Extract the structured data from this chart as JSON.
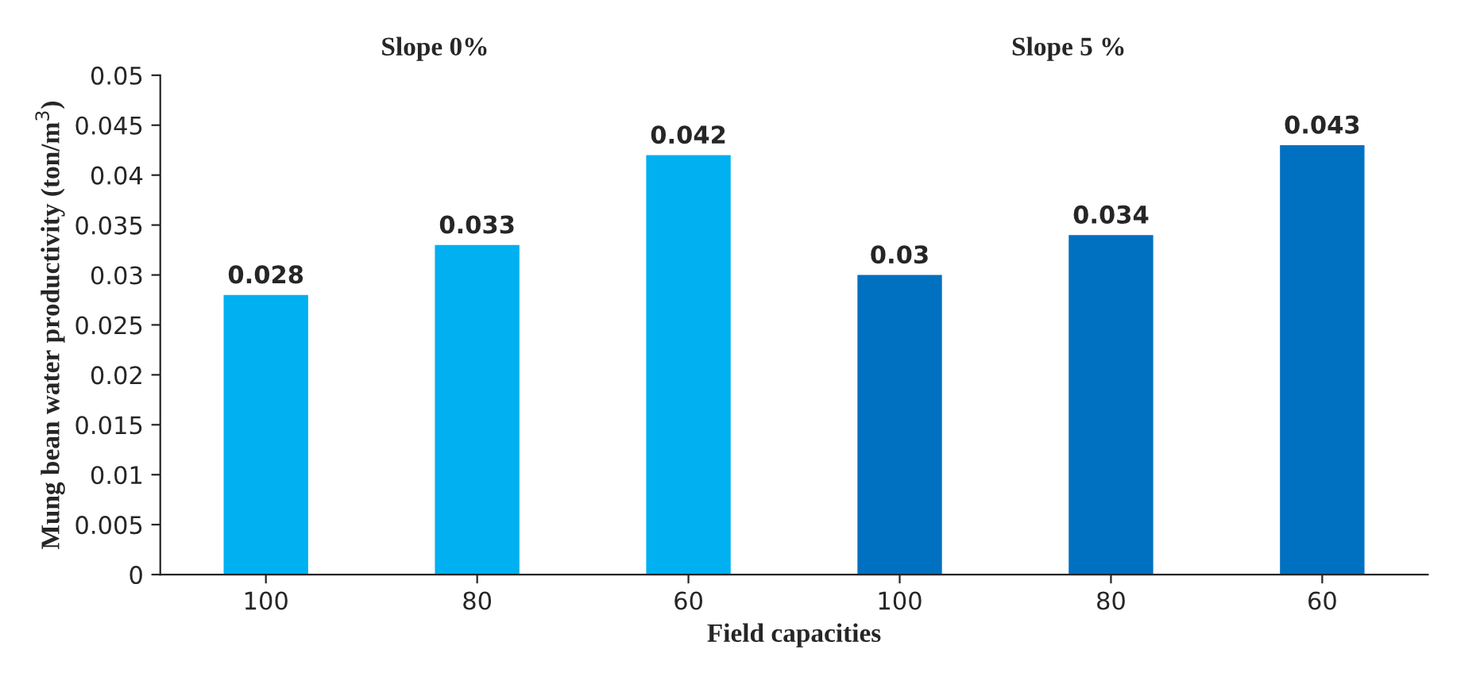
{
  "chart_data": {
    "type": "bar",
    "categories": [
      "100",
      "80",
      "60",
      "100",
      "80",
      "60"
    ],
    "values": [
      0.028,
      0.033,
      0.042,
      0.03,
      0.034,
      0.043
    ],
    "colors": [
      "#00b0f0",
      "#00b0f0",
      "#00b0f0",
      "#0070c0",
      "#0070c0",
      "#0070c0"
    ],
    "xlabel": "Field capacities",
    "ylabel": "Mung bean water productivity (ton/m$^{3}$)",
    "ylim": [
      0,
      0.05
    ],
    "yticks": [
      0,
      0.005,
      0.01,
      0.015,
      0.02,
      0.025,
      0.03,
      0.035,
      0.04,
      0.045,
      0.05
    ],
    "data_labels": true,
    "grid": false,
    "legend": false,
    "annotations": [
      "Slope 0%",
      "Slope 5 %"
    ]
  }
}
